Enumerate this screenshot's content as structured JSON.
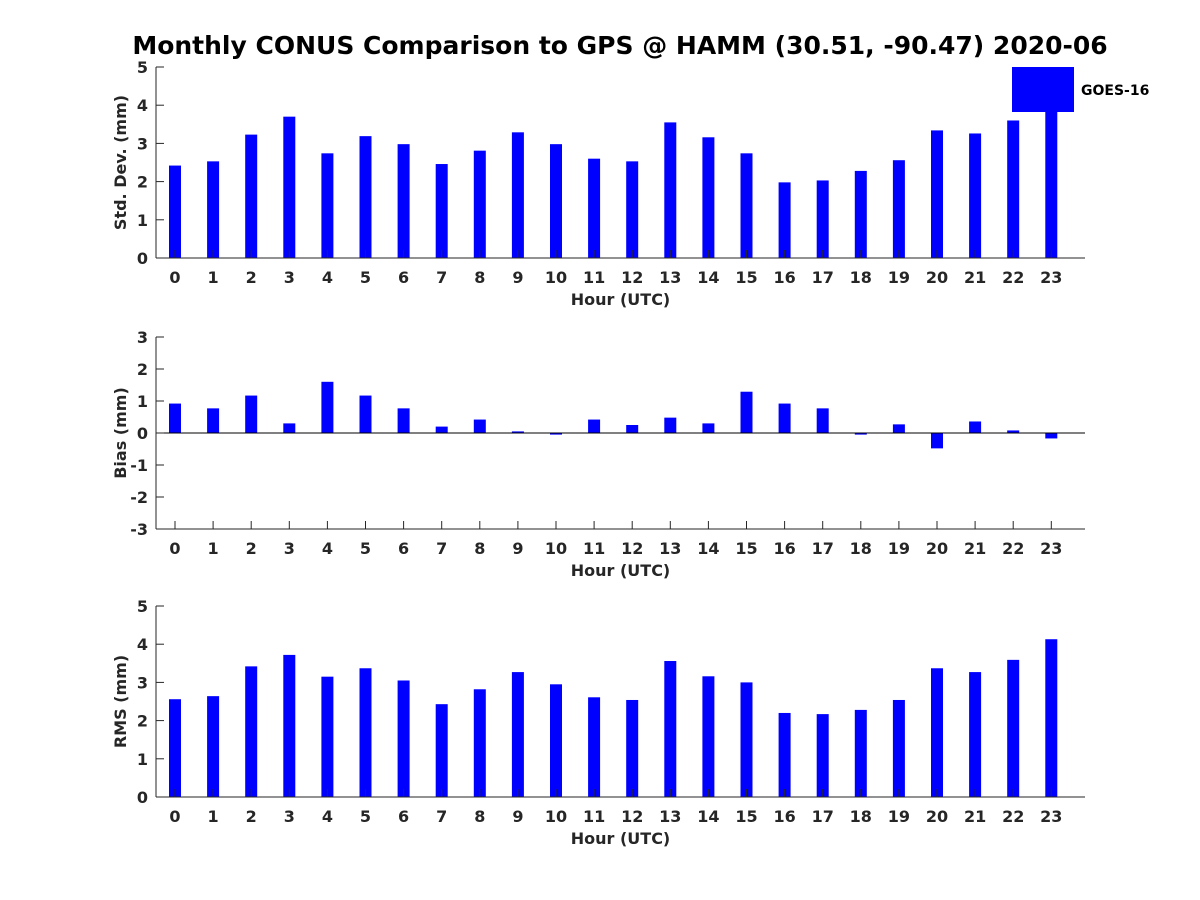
{
  "figure": {
    "title": "Monthly CONUS Comparison to GPS @ HAMM (30.51, -90.47) 2020-06"
  },
  "legend": {
    "label": "GOES-16",
    "placement": "top-right",
    "color": "#0000FF"
  },
  "chart_data": [
    {
      "type": "bar",
      "xlabel": "Hour (UTC)",
      "ylabel": "Std. Dev. (mm)",
      "ylim": [
        0,
        5
      ],
      "yticks": [
        0,
        1,
        2,
        3,
        4,
        5
      ],
      "categories": [
        "0",
        "1",
        "2",
        "3",
        "4",
        "5",
        "6",
        "7",
        "8",
        "9",
        "10",
        "11",
        "12",
        "13",
        "14",
        "15",
        "16",
        "17",
        "18",
        "19",
        "20",
        "21",
        "22",
        "23"
      ],
      "series": [
        {
          "name": "GOES-16",
          "color": "#0000FF",
          "values": [
            2.42,
            2.53,
            3.23,
            3.7,
            2.74,
            3.19,
            2.98,
            2.46,
            2.81,
            3.29,
            2.98,
            2.6,
            2.53,
            3.55,
            3.16,
            2.74,
            1.98,
            2.03,
            2.28,
            2.56,
            3.34,
            3.26,
            3.6,
            3.88
          ]
        }
      ],
      "grid": false
    },
    {
      "type": "bar",
      "xlabel": "Hour (UTC)",
      "ylabel": "Bias (mm)",
      "ylim": [
        -3,
        3
      ],
      "yticks": [
        -3,
        -2,
        -1,
        0,
        1,
        2,
        3
      ],
      "categories": [
        "0",
        "1",
        "2",
        "3",
        "4",
        "5",
        "6",
        "7",
        "8",
        "9",
        "10",
        "11",
        "12",
        "13",
        "14",
        "15",
        "16",
        "17",
        "18",
        "19",
        "20",
        "21",
        "22",
        "23"
      ],
      "series": [
        {
          "name": "GOES-16",
          "color": "#0000FF",
          "values": [
            0.92,
            0.77,
            1.17,
            0.3,
            1.6,
            1.17,
            0.77,
            0.2,
            0.42,
            0.05,
            -0.05,
            0.42,
            0.25,
            0.48,
            0.3,
            1.29,
            0.92,
            0.77,
            -0.05,
            0.27,
            -0.48,
            0.36,
            0.08,
            -0.17
          ]
        }
      ],
      "grid": false
    },
    {
      "type": "bar",
      "xlabel": "Hour (UTC)",
      "ylabel": "RMS (mm)",
      "ylim": [
        0,
        5
      ],
      "yticks": [
        0,
        1,
        2,
        3,
        4,
        5
      ],
      "categories": [
        "0",
        "1",
        "2",
        "3",
        "4",
        "5",
        "6",
        "7",
        "8",
        "9",
        "10",
        "11",
        "12",
        "13",
        "14",
        "15",
        "16",
        "17",
        "18",
        "19",
        "20",
        "21",
        "22",
        "23"
      ],
      "series": [
        {
          "name": "GOES-16",
          "color": "#0000FF",
          "values": [
            2.56,
            2.64,
            3.42,
            3.72,
            3.15,
            3.37,
            3.05,
            2.43,
            2.82,
            3.27,
            2.95,
            2.61,
            2.54,
            3.56,
            3.16,
            3.0,
            2.2,
            2.17,
            2.28,
            2.54,
            3.37,
            3.27,
            3.59,
            4.13
          ]
        }
      ],
      "grid": false
    }
  ]
}
